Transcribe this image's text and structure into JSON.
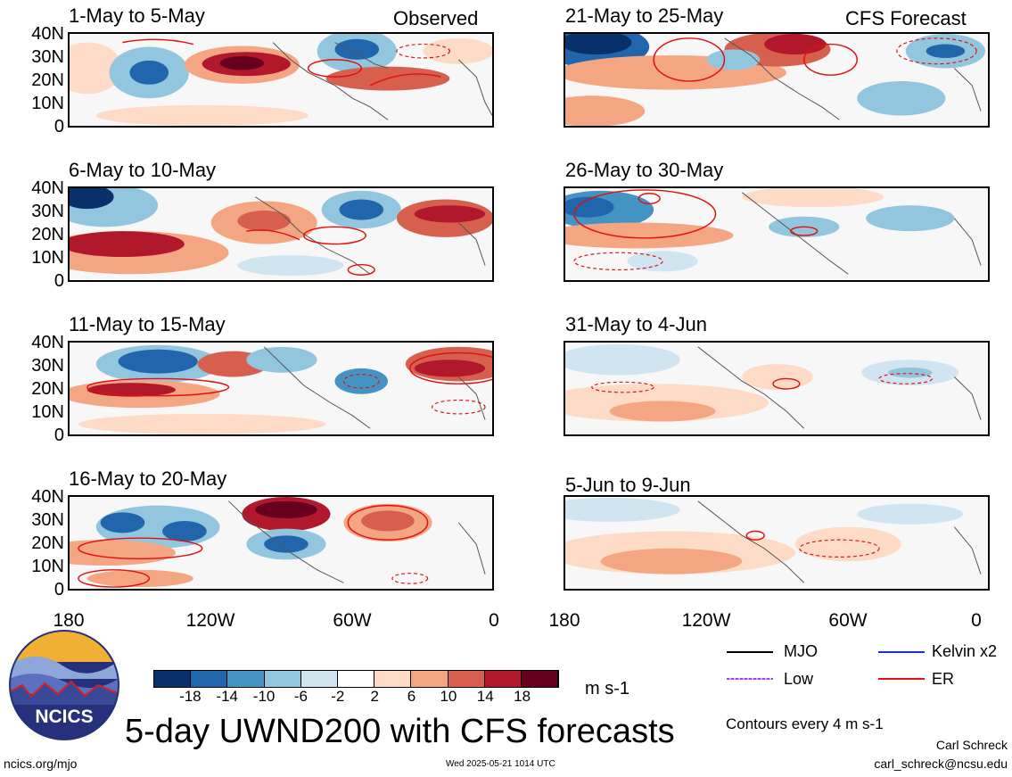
{
  "panels_left": [
    {
      "title": "1-May to 5-May",
      "tag": "Observed"
    },
    {
      "title": "6-May to 10-May",
      "tag": ""
    },
    {
      "title": "11-May to 15-May",
      "tag": ""
    },
    {
      "title": "16-May to 20-May",
      "tag": ""
    }
  ],
  "panels_right": [
    {
      "title": "21-May to 25-May",
      "tag": "CFS Forecast"
    },
    {
      "title": "26-May to 30-May",
      "tag": ""
    },
    {
      "title": "31-May to 4-Jun",
      "tag": ""
    },
    {
      "title": "5-Jun to 9-Jun",
      "tag": ""
    }
  ],
  "y_ticks": [
    "40N",
    "30N",
    "20N",
    "10N",
    "0"
  ],
  "x_ticks": [
    "180",
    "120W",
    "60W",
    "0"
  ],
  "colorbar": {
    "ticks": [
      "-18",
      "-14",
      "-10",
      "-6",
      "-2",
      "2",
      "6",
      "10",
      "14",
      "18"
    ],
    "colors": [
      "#08306b",
      "#2166ac",
      "#4393c3",
      "#92c5de",
      "#d1e5f0",
      "#ffffff",
      "#fddbc7",
      "#f4a582",
      "#d6604d",
      "#b2182b",
      "#67001f"
    ],
    "units": "m s-1"
  },
  "legend": [
    {
      "label": "MJO",
      "color": "#000000"
    },
    {
      "label": "Kelvin x2",
      "color": "#1f2fd0"
    },
    {
      "label": "Low",
      "color": "#a040e0"
    },
    {
      "label": "ER",
      "color": "#e01010"
    }
  ],
  "contour_note": "Contours every 4 m s-1",
  "main_title": "5-day UWND200 with CFS forecasts",
  "logo_text": "NCICS",
  "url": "ncics.org/mjo",
  "timestamp": "Wed 2025-05-21 1014 UTC",
  "author": "Carl Schreck",
  "email": "carl_schreck@ncsu.edu"
}
